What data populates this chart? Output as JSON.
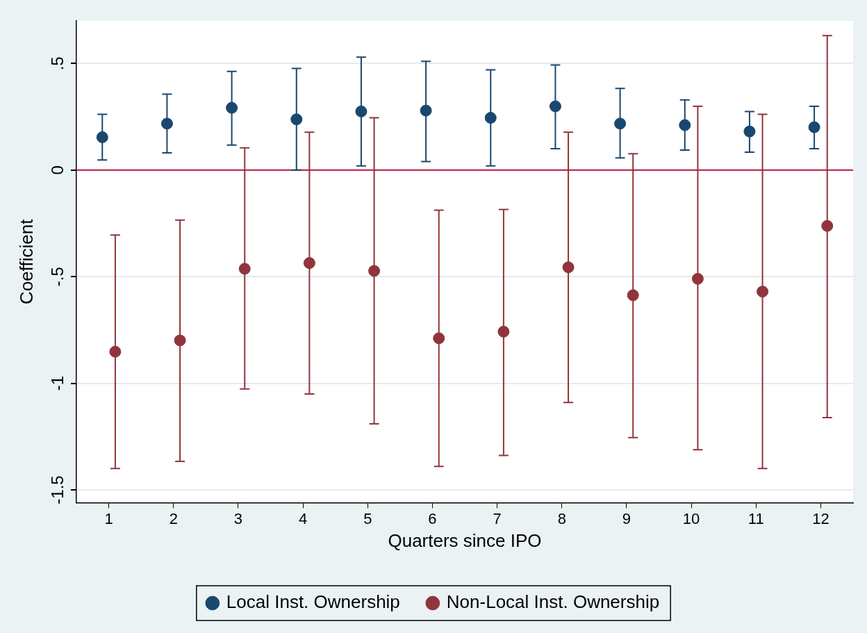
{
  "chart_data": {
    "type": "scatter",
    "xlabel": "Quarters since IPO",
    "ylabel": "Coefficient",
    "xlim": [
      0.5,
      12.5
    ],
    "xticks": [
      1,
      2,
      3,
      4,
      5,
      6,
      7,
      8,
      9,
      10,
      11,
      12
    ],
    "ylim": [
      -1.56,
      0.7
    ],
    "yticks": [
      {
        "value": -1.5,
        "label": "-1.5"
      },
      {
        "value": -1,
        "label": "-1"
      },
      {
        "value": -0.5,
        "label": "-.5"
      },
      {
        "value": 0,
        "label": "0"
      },
      {
        "value": 0.5,
        "label": ".5"
      }
    ],
    "grid": "y",
    "legend": "bottom",
    "marker": "circle",
    "ref_lines": [
      {
        "axis": "y",
        "value": 0,
        "color": "#c0143c"
      }
    ],
    "series": [
      {
        "name": "Local Inst. Ownership",
        "color": "#1a476f",
        "x": [
          0.9,
          1.9,
          2.9,
          3.9,
          4.9,
          5.9,
          6.9,
          7.9,
          8.9,
          9.9,
          10.9,
          11.9
        ],
        "values": [
          0.154,
          0.218,
          0.292,
          0.238,
          0.275,
          0.279,
          0.245,
          0.299,
          0.218,
          0.211,
          0.181,
          0.201
        ],
        "errors": [
          [
            0.047,
            0.262
          ],
          [
            0.081,
            0.356
          ],
          [
            0.117,
            0.463
          ],
          [
            0,
            0.477
          ],
          [
            0.02,
            0.53
          ],
          [
            0.04,
            0.51
          ],
          [
            0.02,
            0.47
          ],
          [
            0.1,
            0.493
          ],
          [
            0.057,
            0.383
          ],
          [
            0.094,
            0.329
          ],
          [
            0.084,
            0.275
          ],
          [
            0.1,
            0.299
          ]
        ]
      },
      {
        "name": "Non-Local Inst. Ownership",
        "color": "#90353b",
        "x": [
          1.1,
          2.1,
          3.1,
          4.1,
          5.1,
          6.1,
          7.1,
          8.1,
          9.1,
          10.1,
          11.1,
          12.1
        ],
        "values": [
          -0.852,
          -0.799,
          -0.463,
          -0.436,
          -0.473,
          -0.789,
          -0.758,
          -0.456,
          -0.587,
          -0.51,
          -0.57,
          -0.262
        ],
        "errors": [
          [
            -1.4,
            -0.305
          ],
          [
            -1.366,
            -0.235
          ],
          [
            -1.027,
            0.104
          ],
          [
            -1.05,
            0.178
          ],
          [
            -1.19,
            0.245
          ],
          [
            -1.39,
            -0.188
          ],
          [
            -1.339,
            -0.185
          ],
          [
            -1.09,
            0.178
          ],
          [
            -1.255,
            0.077
          ],
          [
            -1.312,
            0.299
          ],
          [
            -1.4,
            0.262
          ],
          [
            -1.161,
            0.631
          ]
        ]
      }
    ]
  }
}
